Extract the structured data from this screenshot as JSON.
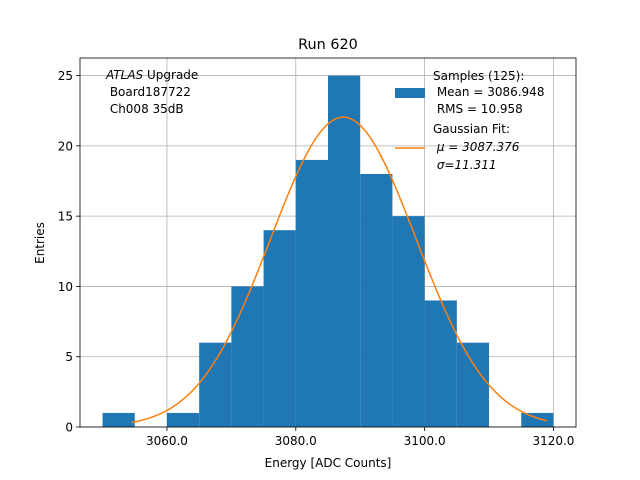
{
  "chart_data": {
    "type": "bar",
    "title": "Run 620",
    "xlabel": "Energy [ADC Counts]",
    "ylabel": "Entries",
    "xlim": [
      3046.5,
      3123.5
    ],
    "ylim": [
      0,
      26.25
    ],
    "grid": true,
    "x_ticks": [
      3060,
      3080,
      3100,
      3120
    ],
    "x_tick_labels": [
      "3060.0",
      "3080.0",
      "3100.0",
      "3120.0"
    ],
    "y_ticks": [
      0,
      5,
      10,
      15,
      20,
      25
    ],
    "y_tick_labels": [
      "0",
      "5",
      "10",
      "15",
      "20",
      "25"
    ],
    "bin_edges": [
      3050,
      3055,
      3060,
      3065,
      3070,
      3075,
      3080,
      3085,
      3090,
      3095,
      3100,
      3105,
      3110,
      3115,
      3120
    ],
    "values": [
      1,
      0,
      1,
      6,
      10,
      14,
      19,
      25,
      18,
      15,
      9,
      6,
      0,
      1
    ],
    "series": [
      {
        "name": "Samples (125):",
        "type": "histogram",
        "color": "#1f77b4"
      },
      {
        "name": "Gaussian Fit:",
        "type": "line",
        "color": "#ff7f0e",
        "mu": 3087.376,
        "sigma": 11.311,
        "x_range": [
          3054.5,
          3119
        ]
      }
    ],
    "legend": {
      "placement": "upper right",
      "entries": [
        {
          "lines": [
            "Samples (125):",
            " Mean = 3086.948",
            " RMS = 10.958"
          ]
        },
        {
          "lines": [
            "Gaussian Fit:",
            " μ = 3087.376",
            " σ=11.311"
          ]
        }
      ]
    },
    "annotation": {
      "italic": "ATLAS",
      "rest": " Upgrade",
      "lines": [
        " Board187722",
        " Ch008 35dB"
      ]
    }
  }
}
